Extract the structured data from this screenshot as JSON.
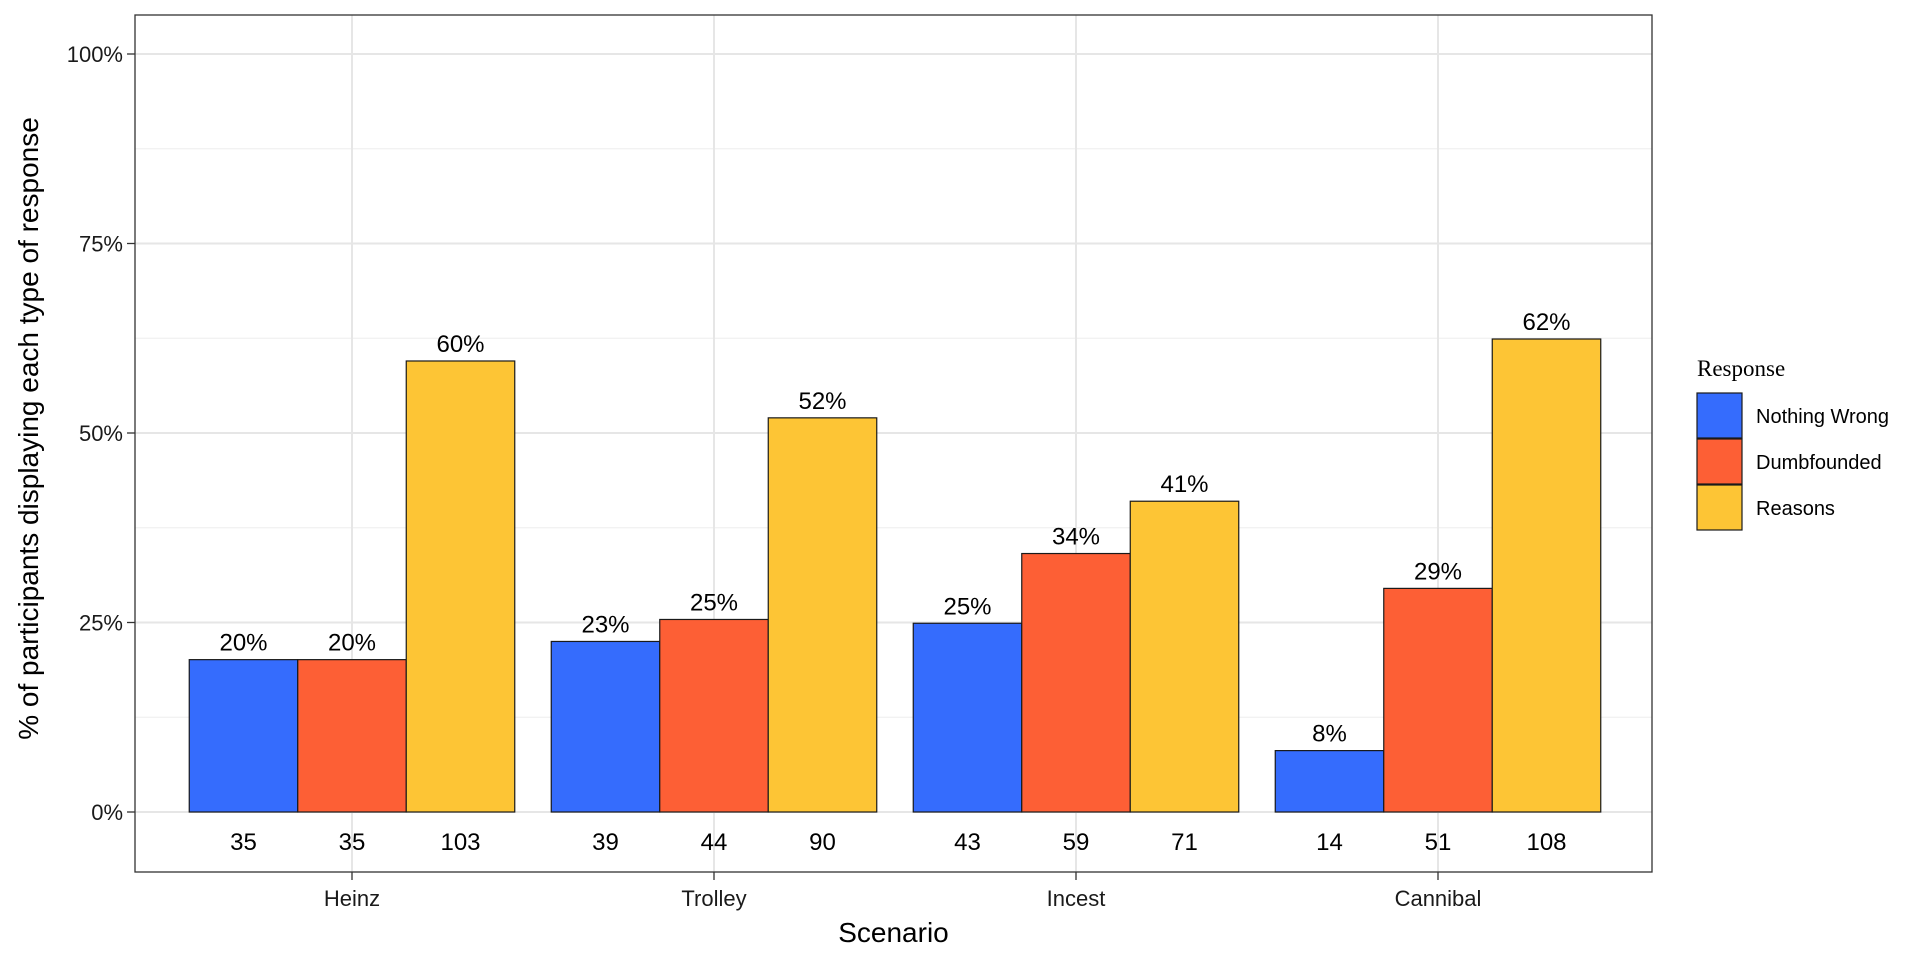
{
  "chart_data": {
    "type": "bar",
    "xlabel": "Scenario",
    "ylabel": "% of participants displaying each type of response",
    "ylim": [
      0,
      1.05
    ],
    "yticks": [
      0,
      0.25,
      0.5,
      0.75,
      1.0
    ],
    "ytick_labels": [
      "0%",
      "25%",
      "50%",
      "75%",
      "100%"
    ],
    "categories": [
      "Heinz",
      "Trolley",
      "Incest",
      "Cannibal"
    ],
    "legend_title": "Response",
    "legend_position": "right",
    "grid": true,
    "series": [
      {
        "name": "Nothing Wrong",
        "color": "#356cfd",
        "values": [
          0.201,
          0.225,
          0.249,
          0.081
        ],
        "value_labels": [
          "20%",
          "23%",
          "25%",
          "8%"
        ],
        "counts": [
          "35",
          "39",
          "43",
          "14"
        ]
      },
      {
        "name": "Dumbfounded",
        "color": "#fd5f35",
        "values": [
          0.201,
          0.254,
          0.341,
          0.295
        ],
        "value_labels": [
          "20%",
          "25%",
          "34%",
          "29%"
        ],
        "counts": [
          "35",
          "44",
          "59",
          "51"
        ]
      },
      {
        "name": "Reasons",
        "color": "#fdc535",
        "values": [
          0.595,
          0.52,
          0.41,
          0.624
        ],
        "value_labels": [
          "60%",
          "52%",
          "41%",
          "62%"
        ],
        "counts": [
          "103",
          "90",
          "71",
          "108"
        ]
      }
    ]
  }
}
